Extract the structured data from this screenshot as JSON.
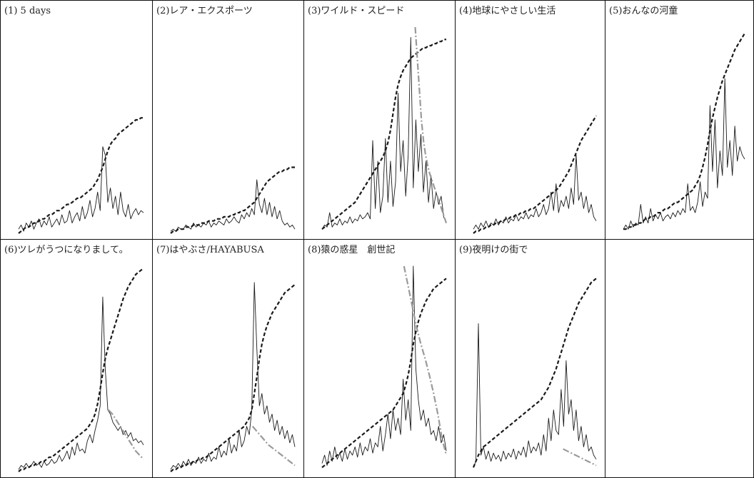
{
  "chart_data": [
    {
      "type": "line",
      "title": "(1) 5 days",
      "series": [
        {
          "values": [
            0.02,
            0.04,
            0.01,
            0.05,
            0.03,
            0.06,
            0.02,
            0.05,
            0.07,
            0.03,
            0.06,
            0.04,
            0.08,
            0.03,
            0.05,
            0.07,
            0.04,
            0.09,
            0.05,
            0.06,
            0.11,
            0.05,
            0.08,
            0.1,
            0.06,
            0.13,
            0.07,
            0.1,
            0.16,
            0.08,
            0.12,
            0.2,
            0.11,
            0.42,
            0.38,
            0.15,
            0.22,
            0.12,
            0.18,
            0.09,
            0.2,
            0.11,
            0.08,
            0.14,
            0.07,
            0.1,
            0.12,
            0.09,
            0.11,
            0.1
          ]
        },
        {
          "values": [
            0.0,
            0.01,
            0.02,
            0.03,
            0.03,
            0.04,
            0.05,
            0.05,
            0.06,
            0.07,
            0.07,
            0.08,
            0.09,
            0.09,
            0.1,
            0.11,
            0.11,
            0.12,
            0.13,
            0.14,
            0.14,
            0.15,
            0.16,
            0.17,
            0.17,
            0.18,
            0.19,
            0.2,
            0.21,
            0.22,
            0.24,
            0.26,
            0.29,
            0.32,
            0.36,
            0.4,
            0.43,
            0.45,
            0.46,
            0.48,
            0.49,
            0.5,
            0.51,
            0.52,
            0.53,
            0.54,
            0.55,
            0.55,
            0.56,
            0.56
          ]
        }
      ]
    },
    {
      "type": "line",
      "title": "(2)レア・エクスポーツ",
      "series": [
        {
          "values": [
            0.01,
            0.02,
            0.01,
            0.03,
            0.02,
            0.02,
            0.04,
            0.03,
            0.02,
            0.05,
            0.03,
            0.04,
            0.03,
            0.05,
            0.04,
            0.06,
            0.03,
            0.05,
            0.04,
            0.06,
            0.05,
            0.04,
            0.07,
            0.05,
            0.06,
            0.08,
            0.06,
            0.05,
            0.09,
            0.07,
            0.1,
            0.08,
            0.12,
            0.09,
            0.26,
            0.14,
            0.1,
            0.17,
            0.09,
            0.15,
            0.08,
            0.13,
            0.07,
            0.11,
            0.06,
            0.04,
            0.05,
            0.03,
            0.04,
            0.02
          ]
        },
        {
          "values": [
            0.0,
            0.01,
            0.01,
            0.02,
            0.02,
            0.02,
            0.03,
            0.03,
            0.03,
            0.04,
            0.04,
            0.04,
            0.05,
            0.05,
            0.05,
            0.06,
            0.06,
            0.06,
            0.07,
            0.07,
            0.07,
            0.08,
            0.08,
            0.08,
            0.09,
            0.09,
            0.1,
            0.1,
            0.11,
            0.11,
            0.12,
            0.13,
            0.14,
            0.15,
            0.17,
            0.19,
            0.21,
            0.23,
            0.25,
            0.26,
            0.27,
            0.28,
            0.29,
            0.3,
            0.3,
            0.31,
            0.31,
            0.32,
            0.32,
            0.32
          ]
        }
      ]
    },
    {
      "type": "line",
      "title": "(3)ワイルド・スピード",
      "series": [
        {
          "values": [
            0.02,
            0.04,
            0.03,
            0.1,
            0.03,
            0.05,
            0.04,
            0.07,
            0.04,
            0.06,
            0.05,
            0.08,
            0.05,
            0.07,
            0.06,
            0.09,
            0.07,
            0.08,
            0.1,
            0.07,
            0.45,
            0.12,
            0.35,
            0.1,
            0.18,
            0.46,
            0.15,
            0.35,
            0.13,
            0.25,
            0.68,
            0.3,
            0.45,
            0.18,
            0.38,
            0.95,
            0.22,
            0.55,
            0.3,
            0.48,
            0.2,
            0.35,
            0.15,
            0.28,
            0.12,
            0.2,
            0.14,
            0.18,
            0.08,
            0.05
          ]
        },
        {
          "values": [
            0.02,
            0.03,
            0.04,
            0.05,
            0.06,
            0.07,
            0.08,
            0.09,
            0.1,
            0.11,
            0.12,
            0.13,
            0.14,
            0.15,
            0.17,
            0.19,
            0.21,
            0.23,
            0.25,
            0.27,
            0.29,
            0.31,
            0.33,
            0.35,
            0.37,
            0.4,
            0.44,
            0.5,
            0.58,
            0.66,
            0.72,
            0.76,
            0.79,
            0.81,
            0.83,
            0.85,
            0.86,
            0.87,
            0.88,
            0.89,
            0.9,
            0.9,
            0.91,
            0.91,
            0.92,
            0.92,
            0.93,
            0.93,
            0.94,
            0.94
          ]
        },
        {
          "values": [
            1.0,
            0.85,
            0.7,
            0.55,
            0.45,
            0.38,
            0.33,
            0.29,
            0.26,
            0.23,
            0.2,
            0.17,
            0.14,
            0.11,
            0.08,
            0.05
          ]
        }
      ]
    },
    {
      "type": "line",
      "title": "(4)地球にやさしい生活",
      "series": [
        {
          "values": [
            0.02,
            0.04,
            0.02,
            0.05,
            0.03,
            0.06,
            0.03,
            0.05,
            0.04,
            0.07,
            0.04,
            0.06,
            0.05,
            0.08,
            0.05,
            0.07,
            0.06,
            0.09,
            0.06,
            0.08,
            0.07,
            0.1,
            0.07,
            0.09,
            0.08,
            0.12,
            0.08,
            0.1,
            0.14,
            0.09,
            0.12,
            0.2,
            0.11,
            0.24,
            0.1,
            0.16,
            0.13,
            0.18,
            0.12,
            0.22,
            0.14,
            0.38,
            0.16,
            0.2,
            0.12,
            0.18,
            0.1,
            0.14,
            0.08,
            0.06
          ]
        },
        {
          "values": [
            0.0,
            0.01,
            0.01,
            0.02,
            0.02,
            0.03,
            0.03,
            0.04,
            0.04,
            0.05,
            0.05,
            0.06,
            0.06,
            0.07,
            0.07,
            0.08,
            0.08,
            0.09,
            0.09,
            0.1,
            0.1,
            0.11,
            0.11,
            0.12,
            0.12,
            0.13,
            0.14,
            0.15,
            0.16,
            0.17,
            0.18,
            0.19,
            0.2,
            0.21,
            0.22,
            0.24,
            0.26,
            0.28,
            0.3,
            0.33,
            0.36,
            0.39,
            0.42,
            0.45,
            0.47,
            0.49,
            0.51,
            0.53,
            0.55,
            0.57
          ]
        }
      ]
    },
    {
      "type": "line",
      "title": "(5)おんなの河童",
      "series": [
        {
          "values": [
            0.02,
            0.04,
            0.02,
            0.06,
            0.03,
            0.05,
            0.04,
            0.14,
            0.05,
            0.08,
            0.05,
            0.12,
            0.06,
            0.09,
            0.07,
            0.1,
            0.06,
            0.08,
            0.09,
            0.07,
            0.1,
            0.08,
            0.11,
            0.09,
            0.12,
            0.1,
            0.24,
            0.11,
            0.13,
            0.1,
            0.15,
            0.25,
            0.13,
            0.2,
            0.17,
            0.62,
            0.3,
            0.55,
            0.22,
            0.4,
            0.28,
            0.75,
            0.32,
            0.45,
            0.28,
            0.52,
            0.35,
            0.42,
            0.38,
            0.36
          ]
        },
        {
          "values": [
            0.02,
            0.02,
            0.03,
            0.03,
            0.04,
            0.04,
            0.05,
            0.05,
            0.06,
            0.07,
            0.07,
            0.08,
            0.08,
            0.09,
            0.1,
            0.1,
            0.11,
            0.12,
            0.12,
            0.13,
            0.14,
            0.15,
            0.15,
            0.16,
            0.17,
            0.18,
            0.19,
            0.2,
            0.21,
            0.23,
            0.25,
            0.28,
            0.32,
            0.37,
            0.43,
            0.5,
            0.56,
            0.61,
            0.66,
            0.7,
            0.74,
            0.77,
            0.8,
            0.83,
            0.86,
            0.89,
            0.91,
            0.93,
            0.95,
            0.97
          ]
        }
      ]
    },
    {
      "type": "line",
      "title": "(6)ツレがうつになりまして。",
      "series": [
        {
          "values": [
            0.01,
            0.03,
            0.02,
            0.04,
            0.02,
            0.03,
            0.05,
            0.03,
            0.04,
            0.02,
            0.05,
            0.03,
            0.04,
            0.06,
            0.04,
            0.05,
            0.08,
            0.05,
            0.07,
            0.1,
            0.06,
            0.12,
            0.08,
            0.14,
            0.1,
            0.11,
            0.09,
            0.15,
            0.18,
            0.14,
            0.2,
            0.25,
            0.32,
            0.85,
            0.5,
            0.3,
            0.28,
            0.24,
            0.22,
            0.2,
            0.22,
            0.18,
            0.2,
            0.17,
            0.19,
            0.15,
            0.16,
            0.14,
            0.15,
            0.13
          ]
        },
        {
          "values": [
            0.0,
            0.01,
            0.01,
            0.02,
            0.02,
            0.03,
            0.03,
            0.04,
            0.04,
            0.05,
            0.05,
            0.06,
            0.07,
            0.07,
            0.08,
            0.09,
            0.1,
            0.11,
            0.12,
            0.13,
            0.14,
            0.15,
            0.16,
            0.17,
            0.18,
            0.19,
            0.2,
            0.21,
            0.23,
            0.25,
            0.28,
            0.33,
            0.4,
            0.48,
            0.55,
            0.6,
            0.64,
            0.68,
            0.72,
            0.76,
            0.8,
            0.84,
            0.87,
            0.9,
            0.92,
            0.94,
            0.96,
            0.97,
            0.98,
            0.99
          ]
        },
        {
          "values": [
            0.3,
            0.28,
            0.25,
            0.22,
            0.19,
            0.16,
            0.13,
            0.1,
            0.08,
            0.06
          ]
        }
      ]
    },
    {
      "type": "line",
      "title": "(7)はやぶさ/HAYABUSA",
      "series": [
        {
          "values": [
            0.01,
            0.03,
            0.02,
            0.04,
            0.02,
            0.05,
            0.03,
            0.06,
            0.03,
            0.05,
            0.04,
            0.07,
            0.04,
            0.06,
            0.05,
            0.09,
            0.05,
            0.07,
            0.06,
            0.12,
            0.07,
            0.1,
            0.08,
            0.16,
            0.09,
            0.13,
            0.1,
            0.2,
            0.12,
            0.15,
            0.22,
            0.18,
            0.3,
            0.92,
            0.6,
            0.32,
            0.38,
            0.28,
            0.32,
            0.24,
            0.28,
            0.2,
            0.25,
            0.18,
            0.22,
            0.16,
            0.2,
            0.14,
            0.18,
            0.12
          ]
        },
        {
          "values": [
            0.0,
            0.01,
            0.01,
            0.02,
            0.02,
            0.03,
            0.03,
            0.04,
            0.04,
            0.05,
            0.05,
            0.06,
            0.06,
            0.07,
            0.07,
            0.08,
            0.09,
            0.1,
            0.11,
            0.12,
            0.13,
            0.14,
            0.15,
            0.16,
            0.17,
            0.18,
            0.19,
            0.2,
            0.21,
            0.22,
            0.24,
            0.26,
            0.3,
            0.38,
            0.46,
            0.55,
            0.62,
            0.67,
            0.71,
            0.74,
            0.77,
            0.79,
            0.81,
            0.83,
            0.85,
            0.87,
            0.88,
            0.89,
            0.9,
            0.91
          ]
        },
        {
          "values": [
            0.22,
            0.19,
            0.16,
            0.13,
            0.11,
            0.09,
            0.07,
            0.05,
            0.03
          ]
        }
      ]
    },
    {
      "type": "line",
      "title": "(8)猿の惑星　創世記",
      "series": [
        {
          "values": [
            0.04,
            0.08,
            0.03,
            0.1,
            0.05,
            0.12,
            0.06,
            0.09,
            0.05,
            0.11,
            0.06,
            0.1,
            0.08,
            0.12,
            0.07,
            0.14,
            0.08,
            0.12,
            0.1,
            0.16,
            0.09,
            0.14,
            0.12,
            0.22,
            0.1,
            0.18,
            0.28,
            0.16,
            0.3,
            0.2,
            0.26,
            0.18,
            0.45,
            0.25,
            0.35,
            0.2,
            1.0,
            0.5,
            0.35,
            0.25,
            0.3,
            0.22,
            0.26,
            0.18,
            0.2,
            0.15,
            0.22,
            0.14,
            0.18,
            0.1
          ]
        },
        {
          "values": [
            0.02,
            0.03,
            0.04,
            0.05,
            0.06,
            0.07,
            0.08,
            0.09,
            0.1,
            0.11,
            0.12,
            0.13,
            0.14,
            0.15,
            0.16,
            0.17,
            0.18,
            0.19,
            0.2,
            0.21,
            0.22,
            0.23,
            0.24,
            0.25,
            0.26,
            0.27,
            0.28,
            0.29,
            0.3,
            0.32,
            0.34,
            0.36,
            0.38,
            0.42,
            0.47,
            0.54,
            0.62,
            0.68,
            0.73,
            0.77,
            0.8,
            0.83,
            0.85,
            0.87,
            0.89,
            0.9,
            0.91,
            0.92,
            0.93,
            0.94
          ]
        },
        {
          "values": [
            1.0,
            0.9,
            0.8,
            0.7,
            0.62,
            0.55,
            0.47,
            0.38,
            0.28,
            0.16,
            0.08
          ]
        }
      ]
    },
    {
      "type": "line",
      "title": "(9)夜明けの街で",
      "series": [
        {
          "values": [
            0.02,
            0.05,
            0.72,
            0.08,
            0.12,
            0.06,
            0.1,
            0.05,
            0.09,
            0.06,
            0.08,
            0.05,
            0.1,
            0.06,
            0.09,
            0.07,
            0.11,
            0.06,
            0.1,
            0.08,
            0.12,
            0.07,
            0.15,
            0.09,
            0.12,
            0.1,
            0.14,
            0.08,
            0.18,
            0.1,
            0.26,
            0.15,
            0.3,
            0.2,
            0.18,
            0.4,
            0.22,
            0.54,
            0.28,
            0.35,
            0.2,
            0.3,
            0.15,
            0.22,
            0.12,
            0.18,
            0.1,
            0.12,
            0.08,
            0.06
          ]
        },
        {
          "values": [
            0.02,
            0.05,
            0.08,
            0.1,
            0.12,
            0.13,
            0.14,
            0.15,
            0.16,
            0.17,
            0.18,
            0.19,
            0.2,
            0.21,
            0.22,
            0.23,
            0.24,
            0.25,
            0.26,
            0.27,
            0.28,
            0.29,
            0.3,
            0.31,
            0.32,
            0.33,
            0.34,
            0.35,
            0.37,
            0.39,
            0.41,
            0.44,
            0.47,
            0.5,
            0.54,
            0.58,
            0.62,
            0.66,
            0.7,
            0.73,
            0.76,
            0.79,
            0.82,
            0.84,
            0.86,
            0.88,
            0.9,
            0.92,
            0.93,
            0.94
          ]
        },
        {
          "values": [
            0.11,
            0.09,
            0.07,
            0.05,
            0.03
          ]
        }
      ]
    }
  ]
}
